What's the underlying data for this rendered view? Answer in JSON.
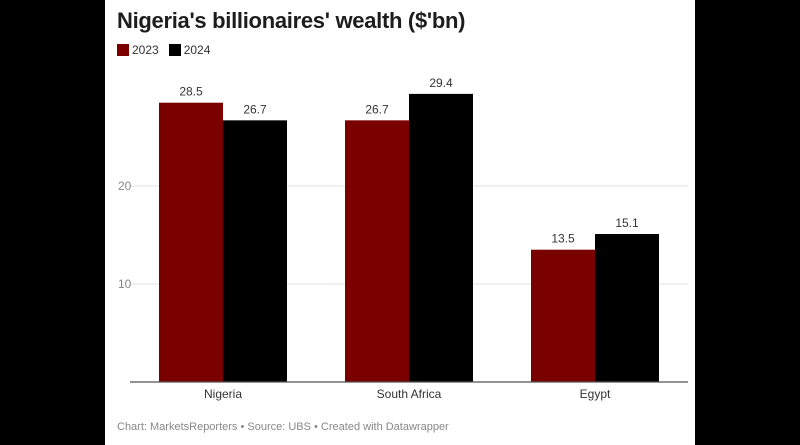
{
  "chart_data": {
    "type": "bar",
    "title": "Nigeria's billionaires' wealth ($'bn)",
    "categories": [
      "Nigeria",
      "South Africa",
      "Egypt"
    ],
    "series": [
      {
        "name": "2023",
        "color": "#7a0000",
        "values": [
          28.5,
          26.7,
          13.5
        ]
      },
      {
        "name": "2024",
        "color": "#000000",
        "values": [
          26.7,
          29.4,
          15.1
        ]
      }
    ],
    "yticks": [
      10,
      20
    ],
    "ylim": [
      0,
      30
    ],
    "grid": true,
    "legend": "top-left",
    "xlabel": "",
    "ylabel": "",
    "footer": "Chart: MarketsReporters • Source: UBS • Created with Datawrapper"
  }
}
